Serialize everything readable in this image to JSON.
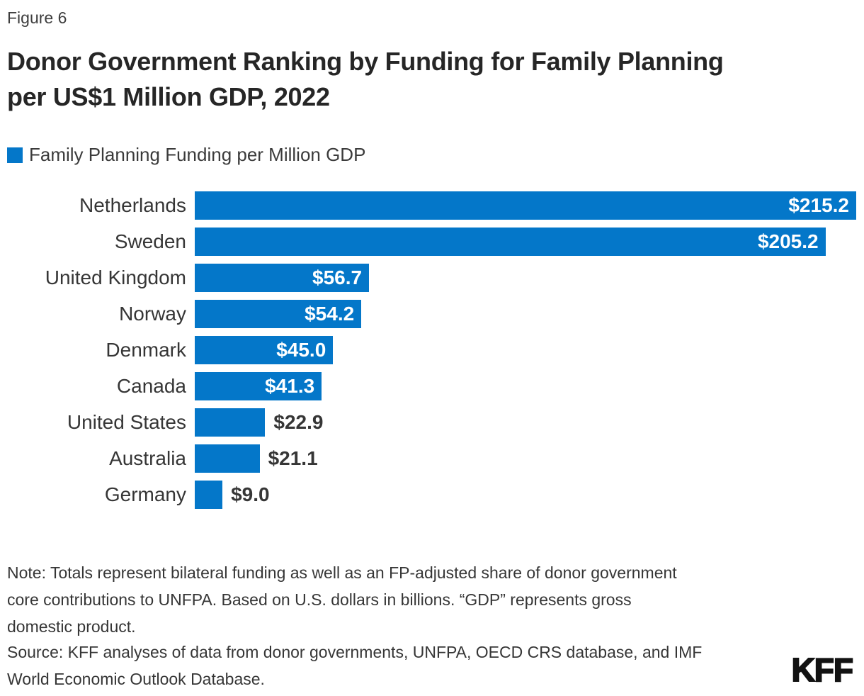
{
  "figure_label": "Figure 6",
  "title": "Donor Government Ranking by Funding for Family Planning\nper US$1 Million GDP, 2022",
  "legend": {
    "label": "Family Planning Funding per Million GDP",
    "swatch_color": "#0477C9"
  },
  "chart_data": {
    "type": "bar",
    "orientation": "horizontal",
    "title": "Donor Government Ranking by Funding for Family Planning per US$1 Million GDP, 2022",
    "series_name": "Family Planning Funding per Million GDP",
    "categories": [
      "Netherlands",
      "Sweden",
      "United Kingdom",
      "Norway",
      "Denmark",
      "Canada",
      "United States",
      "Australia",
      "Germany"
    ],
    "values": [
      215.2,
      205.2,
      56.7,
      54.2,
      45.0,
      41.3,
      22.9,
      21.1,
      9.0
    ],
    "value_labels": [
      "$215.2",
      "$205.2",
      "$56.7",
      "$54.2",
      "$45.0",
      "$41.3",
      "$22.9",
      "$21.1",
      "$9.0"
    ],
    "xlim": [
      0,
      215.2
    ],
    "bar_color": "#0477C9",
    "grid": false,
    "legend_position": "top-left"
  },
  "note": "Note: Totals represent bilateral funding as well as an FP-adjusted share of donor government\ncore contributions to UNFPA. Based on U.S. dollars in billions. “GDP” represents gross\ndomestic product.",
  "source": "Source: KFF analyses of data from donor governments, UNFPA, OECD CRS database, and IMF\nWorld Economic Outlook Database.",
  "logo_text": "KFF",
  "colors": {
    "bar": "#0477C9",
    "title_text": "#262626",
    "body_text": "#363636",
    "value_inside_text": "#ffffff",
    "background": "#ffffff"
  }
}
